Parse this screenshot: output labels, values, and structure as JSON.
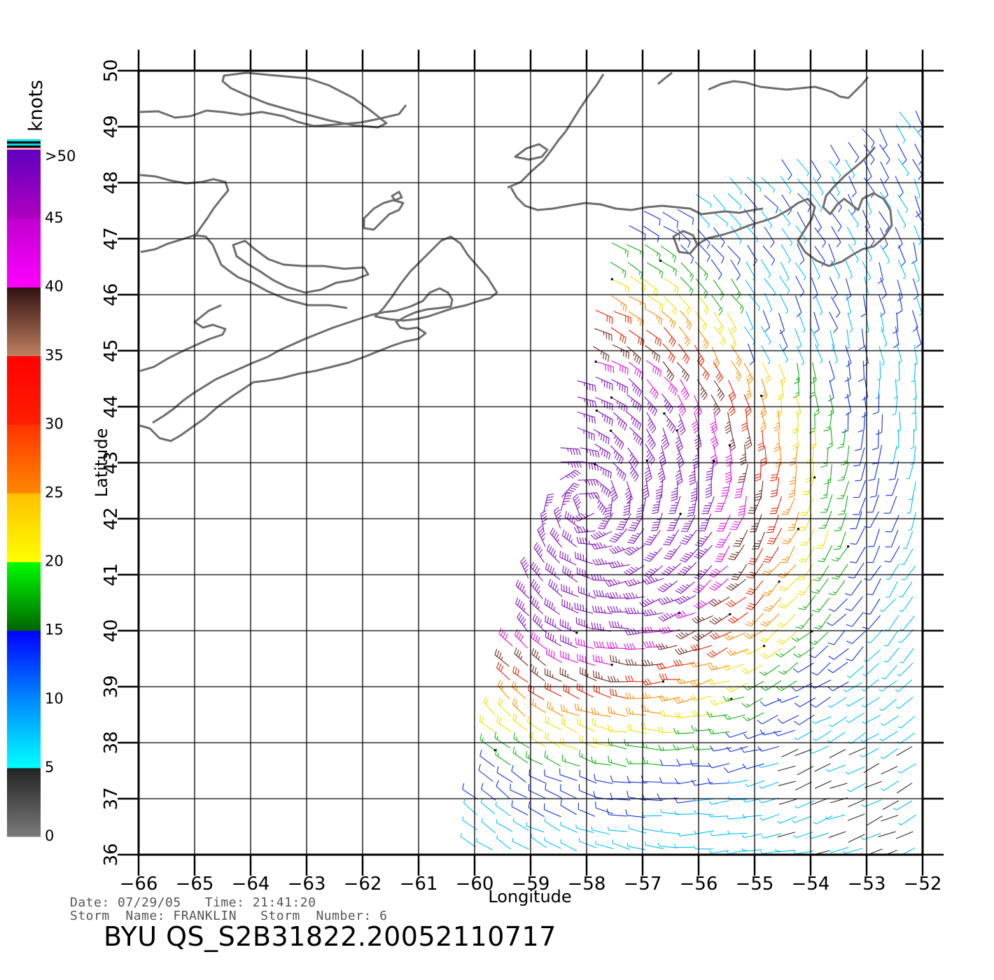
{
  "header": {
    "product_title": "BYU  QS_S2B31822.20052110717"
  },
  "info": {
    "date_label": "Date:",
    "date_value": "07/29/05",
    "time_label": "Time:",
    "time_value": "21:41:20",
    "storm_name_label": "Storm  Name:",
    "storm_name_value": "FRANKLIN",
    "storm_number_label": "Storm  Number:",
    "storm_number_value": "6"
  },
  "map": {
    "x_axis_title": "Longitude",
    "y_axis_title": "Latitude",
    "lon_ticks": [
      -66,
      -65,
      -64,
      -63,
      -62,
      -61,
      -60,
      -59,
      -58,
      -57,
      -56,
      -55,
      -54,
      -53,
      -52
    ],
    "lat_ticks": [
      36,
      37,
      38,
      39,
      40,
      41,
      42,
      43,
      44,
      45,
      46,
      47,
      48,
      49,
      50
    ],
    "lon_range": [
      -66,
      -52
    ],
    "lat_range": [
      36,
      50
    ],
    "grid": true,
    "coastline_color": "#6e6e6e",
    "land_regions": [
      "Nova Scotia",
      "Cape Breton Island",
      "Prince Edward Island",
      "Newfoundland",
      "Anticosti Island",
      "Magdalen Islands",
      "Gaspe Peninsula"
    ]
  },
  "legend": {
    "unit_label": "knots",
    "labels": [
      ">50",
      "45",
      "40",
      "35",
      "30",
      "25",
      "20",
      "15",
      "10",
      "5",
      "0"
    ],
    "bands": [
      {
        "min": 0,
        "max": 5,
        "colors": [
          "#7a7a7a",
          "#222222"
        ]
      },
      {
        "min": 5,
        "max": 10,
        "colors": [
          "#00ffff",
          "#0088ff"
        ]
      },
      {
        "min": 10,
        "max": 15,
        "colors": [
          "#0088ff",
          "#0000ff"
        ]
      },
      {
        "min": 15,
        "max": 20,
        "colors": [
          "#006400",
          "#00ff00"
        ]
      },
      {
        "min": 20,
        "max": 25,
        "colors": [
          "#ffff00",
          "#ffc000"
        ]
      },
      {
        "min": 25,
        "max": 30,
        "colors": [
          "#ff8800",
          "#ff3300"
        ]
      },
      {
        "min": 30,
        "max": 35,
        "colors": [
          "#ff2000",
          "#ff0000"
        ]
      },
      {
        "min": 35,
        "max": 40,
        "colors": [
          "#c08060",
          "#301010"
        ]
      },
      {
        "min": 40,
        "max": 45,
        "colors": [
          "#ff00ff",
          "#c000d0"
        ]
      },
      {
        "min": 45,
        "max": 50,
        "colors": [
          "#b000c0",
          "#6000c0"
        ]
      }
    ],
    "top_strip_colors": [
      "#ff9fb5",
      "#000000",
      "#00e0e0",
      "#000000",
      "#00e0e0"
    ]
  },
  "wind_field": {
    "description_units": "knots",
    "swath_corners": [
      [
        -60.3,
        36.0
      ],
      [
        -58.3,
        44.0
      ],
      [
        -57.5,
        47.3
      ],
      [
        -52.0,
        49.5
      ],
      [
        -52.0,
        36.0
      ]
    ],
    "center": {
      "lon": -58.0,
      "lat": 42.2
    },
    "max_speed": 47
  }
}
